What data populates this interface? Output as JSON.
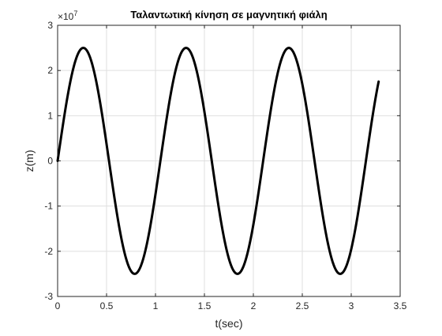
{
  "chart_data": {
    "type": "line",
    "title": "Ταλαντωτική κίνηση σε μαγνητική φιάλη",
    "xlabel": "t(sec)",
    "ylabel": "z(m)",
    "y_exponent_label": {
      "base": "×10",
      "power": "7"
    },
    "xlim": [
      0,
      3.5
    ],
    "ylim": [
      -3,
      3
    ],
    "xticks": [
      0,
      0.5,
      1,
      1.5,
      2,
      2.5,
      3,
      3.5
    ],
    "xtick_labels": [
      "0",
      "0.5",
      "1",
      "1.5",
      "2",
      "2.5",
      "3",
      "3.5"
    ],
    "yticks": [
      -3,
      -2,
      -1,
      0,
      1,
      2,
      3
    ],
    "ytick_labels": [
      "-3",
      "-2",
      "-1",
      "0",
      "1",
      "2",
      "3"
    ],
    "grid": true,
    "series": [
      {
        "color": "#000000",
        "amplitude": 2.5,
        "period": 1.05,
        "phase": 0,
        "t_end": 3.28
      }
    ]
  }
}
